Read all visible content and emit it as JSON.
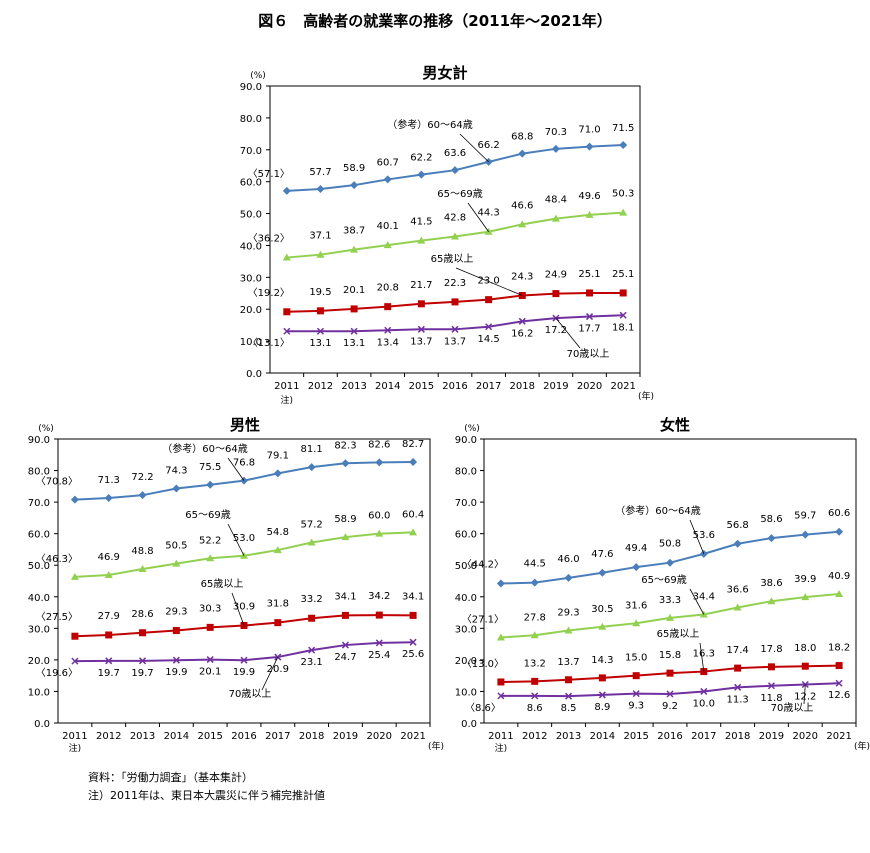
{
  "main_title": "図６　高齢者の就業率の推移（2011年～2021年）",
  "unit_pct": "(%)",
  "unit_year": "(年)",
  "note_2011": "注)",
  "footnotes": {
    "source": "資料：「労働力調査」（基本集計）",
    "note": "注）2011年は、東日本大震災に伴う補完推計値"
  },
  "colors": {
    "s6064": "#4a7ebb",
    "s6569": "#92d050",
    "s65plus": "#c00000",
    "s70plus": "#7030a0"
  },
  "chart_data": [
    {
      "type": "line",
      "title": "男女計",
      "x": [
        "2011",
        "2012",
        "2013",
        "2014",
        "2015",
        "2016",
        "2017",
        "2018",
        "2019",
        "2020",
        "2021"
      ],
      "ylim": [
        0,
        90
      ],
      "yticks": [
        "0.0",
        "10.0",
        "20.0",
        "30.0",
        "40.0",
        "50.0",
        "60.0",
        "70.0",
        "80.0",
        "90.0"
      ],
      "series": [
        {
          "name": "（参考）60～64歳",
          "values": [
            57.1,
            57.7,
            58.9,
            60.7,
            62.2,
            63.6,
            66.2,
            68.8,
            70.3,
            71.0,
            71.5
          ],
          "labels": [
            "〈57.1〉",
            "57.7",
            "58.9",
            "60.7",
            "62.2",
            "63.6",
            "66.2",
            "68.8",
            "70.3",
            "71.0",
            "71.5"
          ]
        },
        {
          "name": "65～69歳",
          "values": [
            36.2,
            37.1,
            38.7,
            40.1,
            41.5,
            42.8,
            44.3,
            46.6,
            48.4,
            49.6,
            50.3
          ],
          "labels": [
            "〈36.2〉",
            "37.1",
            "38.7",
            "40.1",
            "41.5",
            "42.8",
            "44.3",
            "46.6",
            "48.4",
            "49.6",
            "50.3"
          ]
        },
        {
          "name": "65歳以上",
          "values": [
            19.2,
            19.5,
            20.1,
            20.8,
            21.7,
            22.3,
            23.0,
            24.3,
            24.9,
            25.1,
            25.1
          ],
          "labels": [
            "〈19.2〉",
            "19.5",
            "20.1",
            "20.8",
            "21.7",
            "22.3",
            "23.0",
            "24.3",
            "24.9",
            "25.1",
            "25.1"
          ]
        },
        {
          "name": "70歳以上",
          "values": [
            13.1,
            13.1,
            13.1,
            13.4,
            13.7,
            13.7,
            14.5,
            16.2,
            17.2,
            17.7,
            18.1
          ],
          "labels": [
            "〈13.1〉",
            "13.1",
            "13.1",
            "13.4",
            "13.7",
            "13.7",
            "14.5",
            "16.2",
            "17.2",
            "17.7",
            "18.1"
          ]
        }
      ]
    },
    {
      "type": "line",
      "title": "男性",
      "x": [
        "2011",
        "2012",
        "2013",
        "2014",
        "2015",
        "2016",
        "2017",
        "2018",
        "2019",
        "2020",
        "2021"
      ],
      "ylim": [
        0,
        90
      ],
      "yticks": [
        "0.0",
        "10.0",
        "20.0",
        "30.0",
        "40.0",
        "50.0",
        "60.0",
        "70.0",
        "80.0",
        "90.0"
      ],
      "series": [
        {
          "name": "（参考）60～64歳",
          "values": [
            70.8,
            71.3,
            72.2,
            74.3,
            75.5,
            76.8,
            79.1,
            81.1,
            82.3,
            82.6,
            82.7
          ],
          "labels": [
            "〈70.8〉",
            "71.3",
            "72.2",
            "74.3",
            "75.5",
            "76.8",
            "79.1",
            "81.1",
            "82.3",
            "82.6",
            "82.7"
          ]
        },
        {
          "name": "65～69歳",
          "values": [
            46.3,
            46.9,
            48.8,
            50.5,
            52.2,
            53.0,
            54.8,
            57.2,
            58.9,
            60.0,
            60.4
          ],
          "labels": [
            "〈46.3〉",
            "46.9",
            "48.8",
            "50.5",
            "52.2",
            "53.0",
            "54.8",
            "57.2",
            "58.9",
            "60.0",
            "60.4"
          ]
        },
        {
          "name": "65歳以上",
          "values": [
            27.5,
            27.9,
            28.6,
            29.3,
            30.3,
            30.9,
            31.8,
            33.2,
            34.1,
            34.2,
            34.1
          ],
          "labels": [
            "〈27.5〉",
            "27.9",
            "28.6",
            "29.3",
            "30.3",
            "30.9",
            "31.8",
            "33.2",
            "34.1",
            "34.2",
            "34.1"
          ]
        },
        {
          "name": "70歳以上",
          "values": [
            19.6,
            19.7,
            19.7,
            19.9,
            20.1,
            19.9,
            20.9,
            23.1,
            24.7,
            25.4,
            25.6
          ],
          "labels": [
            "〈19.6〉",
            "19.7",
            "19.7",
            "19.9",
            "20.1",
            "19.9",
            "20.9",
            "23.1",
            "24.7",
            "25.4",
            "25.6"
          ]
        }
      ]
    },
    {
      "type": "line",
      "title": "女性",
      "x": [
        "2011",
        "2012",
        "2013",
        "2014",
        "2015",
        "2016",
        "2017",
        "2018",
        "2019",
        "2020",
        "2021"
      ],
      "ylim": [
        0,
        90
      ],
      "yticks": [
        "0.0",
        "10.0",
        "20.0",
        "30.0",
        "40.0",
        "50.0",
        "60.0",
        "70.0",
        "80.0",
        "90.0"
      ],
      "series": [
        {
          "name": "（参考）60～64歳",
          "values": [
            44.2,
            44.5,
            46.0,
            47.6,
            49.4,
            50.8,
            53.6,
            56.8,
            58.6,
            59.7,
            60.6
          ],
          "labels": [
            "〈44.2〉",
            "44.5",
            "46.0",
            "47.6",
            "49.4",
            "50.8",
            "53.6",
            "56.8",
            "58.6",
            "59.7",
            "60.6"
          ]
        },
        {
          "name": "65～69歳",
          "values": [
            27.1,
            27.8,
            29.3,
            30.5,
            31.6,
            33.3,
            34.4,
            36.6,
            38.6,
            39.9,
            40.9
          ],
          "labels": [
            "〈27.1〉",
            "27.8",
            "29.3",
            "30.5",
            "31.6",
            "33.3",
            "34.4",
            "36.6",
            "38.6",
            "39.9",
            "40.9"
          ]
        },
        {
          "name": "65歳以上",
          "values": [
            13.0,
            13.2,
            13.7,
            14.3,
            15.0,
            15.8,
            16.3,
            17.4,
            17.8,
            18.0,
            18.2
          ],
          "labels": [
            "〈13.0〉",
            "13.2",
            "13.7",
            "14.3",
            "15.0",
            "15.8",
            "16.3",
            "17.4",
            "17.8",
            "18.0",
            "18.2"
          ]
        },
        {
          "name": "70歳以上",
          "values": [
            8.6,
            8.6,
            8.5,
            8.9,
            9.3,
            9.2,
            10.0,
            11.3,
            11.8,
            12.2,
            12.6
          ],
          "labels": [
            "〈8.6〉",
            "8.6",
            "8.5",
            "8.9",
            "9.3",
            "9.2",
            "10.0",
            "11.3",
            "11.8",
            "12.2",
            "12.6"
          ]
        }
      ]
    }
  ]
}
